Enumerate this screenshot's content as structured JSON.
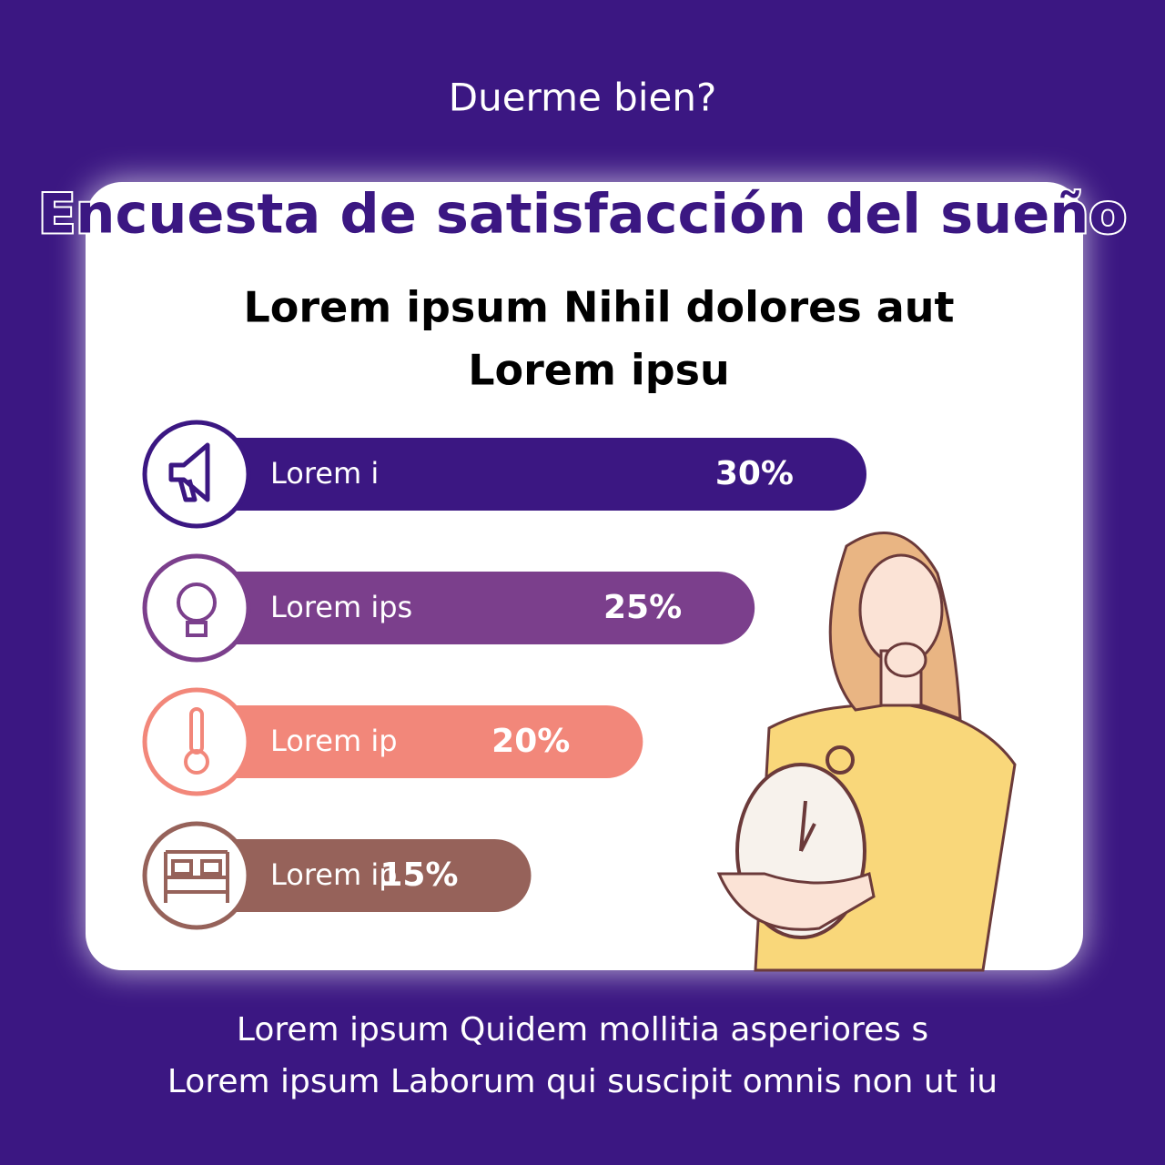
{
  "chart_data": {
    "type": "bar",
    "subtitle": "Duerme bien?",
    "title": "Encuesta de satisfacción del sueño",
    "heading": [
      "Lorem ipsum Nihil dolores aut",
      "Lorem ipsu"
    ],
    "categories": [
      "Lorem i",
      "Lorem ips",
      "Lorem ip",
      "Lorem ip"
    ],
    "values": [
      30,
      25,
      20,
      15
    ],
    "value_labels": [
      "30%",
      "25%",
      "20%",
      "15%"
    ],
    "colors": [
      "#3b1782",
      "#7b3f8c",
      "#f2877a",
      "#96625a"
    ],
    "footer": [
      "Lorem ipsum Quidem mollitia asperiores s",
      "Lorem ipsum Laborum qui suscipit omnis non ut iu"
    ]
  }
}
